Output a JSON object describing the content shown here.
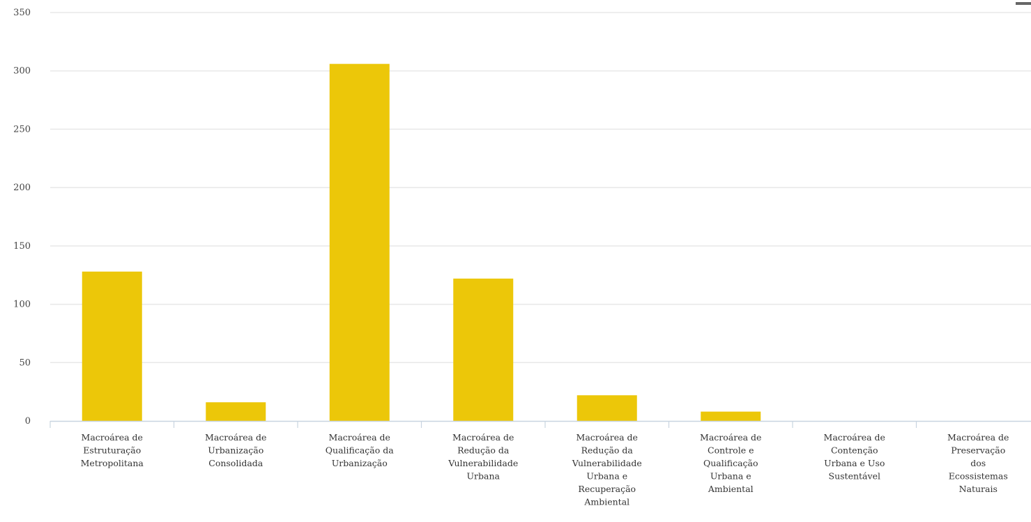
{
  "colors": {
    "bar": "#ECC709",
    "grid": "#e8e8e8",
    "axis": "#c8d4e0",
    "text": "#333333",
    "icon": "#666666"
  },
  "icons": {
    "menu": "menu-icon"
  },
  "chart_data": {
    "type": "bar",
    "title": "",
    "xlabel": "",
    "ylabel": "",
    "ylim": [
      0,
      350
    ],
    "yticks": [
      0,
      50,
      100,
      150,
      200,
      250,
      300,
      350
    ],
    "grid": true,
    "legend": "none",
    "categories": [
      [
        "Macroárea de",
        "Estruturação",
        "Metropolitana"
      ],
      [
        "Macroárea de",
        "Urbanização",
        "Consolidada"
      ],
      [
        "Macroárea de",
        "Qualificação da",
        "Urbanização"
      ],
      [
        "Macroárea de",
        "Redução da",
        "Vulnerabilidade",
        "Urbana"
      ],
      [
        "Macroárea de",
        "Redução da",
        "Vulnerabilidade",
        "Urbana e",
        "Recuperação",
        "Ambiental"
      ],
      [
        "Macroárea de",
        "Controle e",
        "Qualificação",
        "Urbana e",
        "Ambiental"
      ],
      [
        "Macroárea de",
        "Contenção",
        "Urbana e Uso",
        "Sustentável"
      ],
      [
        "Macroárea de",
        "Preservação",
        "dos",
        "Ecossistemas",
        "Naturais"
      ]
    ],
    "values": [
      128,
      16,
      306,
      122,
      22,
      8,
      0,
      0
    ]
  }
}
